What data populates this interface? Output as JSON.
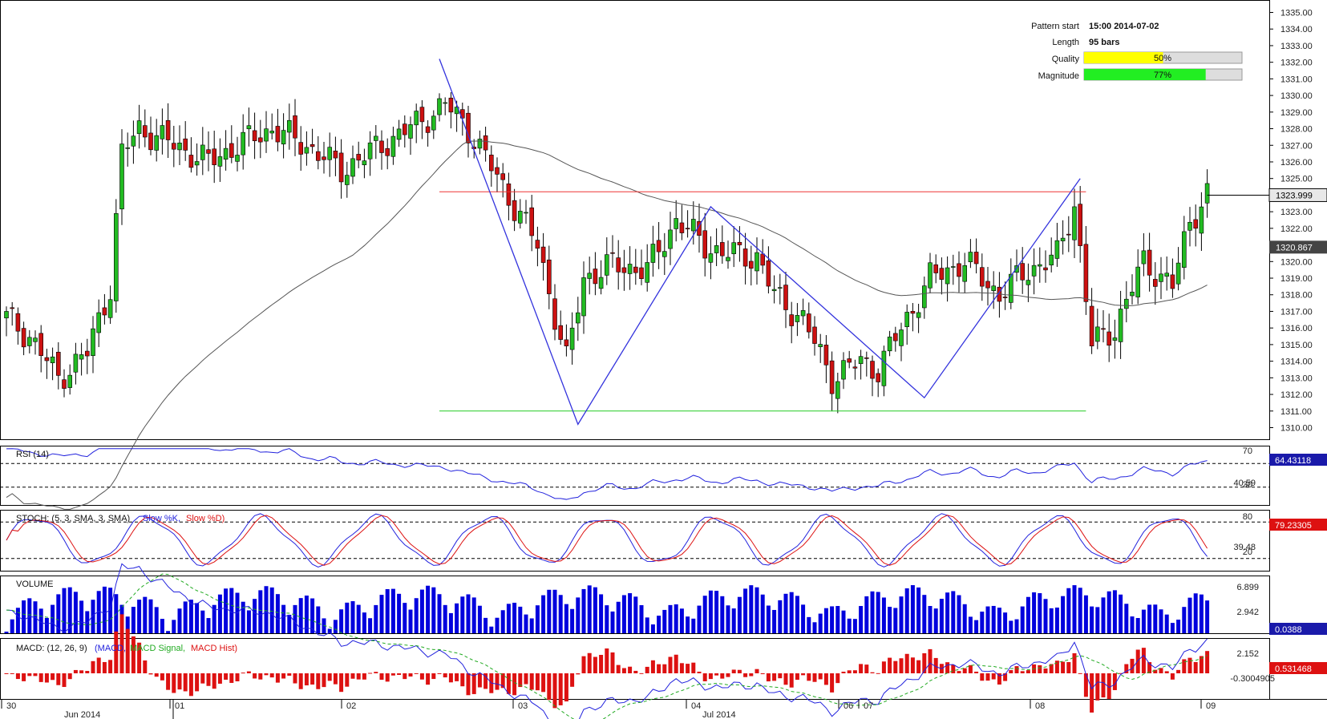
{
  "chart_data": {
    "type": "candlestick",
    "price_axis": {
      "ticks": [
        "1335.00",
        "1334.00",
        "1333.00",
        "1332.00",
        "1331.00",
        "1330.00",
        "1329.00",
        "1328.00",
        "1327.00",
        "1326.00",
        "1325.00",
        "1324.00",
        "1323.00",
        "1322.00",
        "1321.00",
        "1320.00",
        "1319.00",
        "1318.00",
        "1317.00",
        "1316.00",
        "1315.00",
        "1314.00",
        "1313.00",
        "1312.00",
        "1311.00",
        "1310.00"
      ],
      "ylim": [
        1309.3,
        1335.7
      ],
      "current_price": "1323.999",
      "ma_value": "1320.867"
    },
    "time_axis": {
      "day_labels": [
        "30",
        "01",
        "02",
        "03",
        "04",
        "06",
        "07",
        "08",
        "09"
      ],
      "month_labels": [
        "Jun 2014",
        "Jul 2014"
      ]
    },
    "pattern": {
      "start_label": "Pattern start",
      "start_value": "15:00 2014-07-02",
      "length_label": "Length",
      "length_value": "95 bars",
      "quality_label": "Quality",
      "quality_value": "50%",
      "quality_fraction": 0.5,
      "magnitude_label": "Magnitude",
      "magnitude_value": "77%",
      "magnitude_fraction": 0.77,
      "resistance_level": 1324.2,
      "support_level": 1311.0,
      "zigzag": [
        [
          1332.2
        ],
        [
          1310.2
        ],
        [
          1323.3
        ],
        [
          1311.8
        ],
        [
          1325.0
        ]
      ]
    },
    "indicators": {
      "rsi": {
        "label": "RSI (14)",
        "levels": [
          "70",
          "30"
        ],
        "value": "64.43118",
        "mid_value": "40.59"
      },
      "stoch": {
        "label": "STOCH: (5, 3, SMA, 3, SMA)",
        "k_label": "Slow %K,",
        "d_label": "Slow %D)",
        "levels": [
          "80",
          "20"
        ],
        "value": "79.23305",
        "mid_value": "39.48"
      },
      "volume": {
        "label": "VOLUME",
        "ticks": [
          "6.899",
          "2.942"
        ],
        "value": "0.0388"
      },
      "macd": {
        "label": "MACD: (12, 26, 9)",
        "macd_label": "(MACD,",
        "signal_label": "MACD Signal,",
        "hist_label": "MACD Hist)",
        "ticks": [
          "2.152",
          "-0.3004905"
        ],
        "value": "0.531468"
      }
    },
    "colors": {
      "bull": "#22bb22",
      "bear": "#cc1111",
      "pattern_line": "#3333dd",
      "resistance": "#ee3333",
      "support": "#22cc22",
      "ma": "#555555",
      "volume": "#0000dd",
      "quality_bar": "#ffff00",
      "magnitude_bar": "#22ee22"
    }
  }
}
